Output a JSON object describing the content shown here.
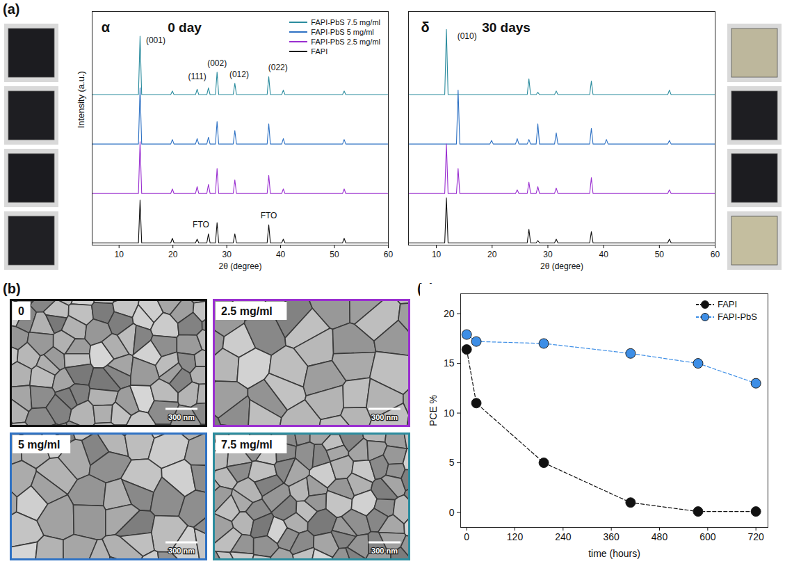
{
  "panel_labels": [
    "(a)",
    "(b)",
    "(c)"
  ],
  "chart_data": [
    {
      "type": "line",
      "title": "0 day",
      "xlabel": "2θ (degree)",
      "ylabel": "Intensity (a.u.)",
      "x": [
        5,
        11.5,
        11.8,
        12.1,
        13.6,
        13.9,
        14.2,
        19.6,
        19.9,
        20.2,
        24.2,
        24.5,
        24.8,
        26.3,
        26.6,
        26.9,
        27.9,
        28.2,
        28.5,
        31.2,
        31.5,
        31.8,
        37.5,
        37.8,
        38.1,
        40.2,
        40.5,
        40.8,
        51.5,
        51.8,
        52.1,
        60
      ],
      "series": [
        {
          "name": "FAPI-PbS 7.5 mg/ml",
          "color": "#2b8c9e",
          "values": [
            3.35,
            3.35,
            3.35,
            3.35,
            3.35,
            4.65,
            3.35,
            3.35,
            3.43,
            3.35,
            3.35,
            3.47,
            3.35,
            3.35,
            3.5,
            3.35,
            3.35,
            3.85,
            3.35,
            3.35,
            3.6,
            3.35,
            3.35,
            3.75,
            3.35,
            3.35,
            3.45,
            3.35,
            3.35,
            3.43,
            3.35,
            3.35
          ]
        },
        {
          "name": "FAPI-PbS 5 mg/ml",
          "color": "#2f72c4",
          "values": [
            2.25,
            2.25,
            2.25,
            2.25,
            2.25,
            3.5,
            2.25,
            2.25,
            2.35,
            2.25,
            2.25,
            2.37,
            2.25,
            2.25,
            2.4,
            2.25,
            2.25,
            2.75,
            2.25,
            2.25,
            2.55,
            2.25,
            2.25,
            2.7,
            2.25,
            2.25,
            2.37,
            2.25,
            2.25,
            2.35,
            2.25,
            2.25
          ]
        },
        {
          "name": "FAPI-PbS 2.5 mg/ml",
          "color": "#9a2fd0",
          "values": [
            1.15,
            1.15,
            1.15,
            1.15,
            1.15,
            2.3,
            1.15,
            1.15,
            1.25,
            1.15,
            1.15,
            1.3,
            1.15,
            1.15,
            1.35,
            1.15,
            1.15,
            1.7,
            1.15,
            1.15,
            1.45,
            1.15,
            1.15,
            1.55,
            1.15,
            1.15,
            1.25,
            1.15,
            1.15,
            1.25,
            1.15,
            1.15
          ]
        },
        {
          "name": "FAPI",
          "color": "#111111",
          "values": [
            0.05,
            0.05,
            0.05,
            0.05,
            0.05,
            1.0,
            0.05,
            0.05,
            0.15,
            0.05,
            0.05,
            0.13,
            0.05,
            0.05,
            0.25,
            0.05,
            0.05,
            0.5,
            0.05,
            0.05,
            0.25,
            0.05,
            0.05,
            0.45,
            0.05,
            0.05,
            0.13,
            0.05,
            0.05,
            0.15,
            0.05,
            0.05
          ]
        }
      ],
      "xlim": [
        5,
        60
      ],
      "ylim": [
        0,
        5.2
      ],
      "xticks": [
        10,
        20,
        30,
        40,
        50,
        60
      ],
      "tick_labels": "x",
      "legend": "top-right",
      "annotations": [
        {
          "text": "α",
          "x": 7.5,
          "y": 4.85
        },
        {
          "text": "(001)",
          "x": 16.8,
          "y": 4.55
        },
        {
          "text": "(111)",
          "x": 24.5,
          "y": 3.75
        },
        {
          "text": "(002)",
          "x": 28.2,
          "y": 4.05
        },
        {
          "text": "(012)",
          "x": 32.3,
          "y": 3.8
        },
        {
          "text": "(022)",
          "x": 39.5,
          "y": 3.95
        },
        {
          "text": "FTO",
          "x": 25.2,
          "y": 0.45
        },
        {
          "text": "FTO",
          "x": 37.8,
          "y": 0.65
        }
      ]
    },
    {
      "type": "line",
      "title": "30 days",
      "xlabel": "2θ (degree)",
      "x": [
        5,
        11.5,
        11.8,
        12.1,
        13.6,
        13.9,
        14.2,
        19.6,
        19.9,
        20.2,
        24.2,
        24.5,
        24.8,
        26.3,
        26.6,
        26.9,
        27.9,
        28.2,
        28.5,
        31.2,
        31.5,
        31.8,
        37.5,
        37.8,
        38.1,
        40.2,
        40.5,
        40.8,
        51.5,
        51.8,
        52.1,
        60
      ],
      "series": [
        {
          "name": "FAPI-PbS 7.5 mg/ml",
          "color": "#2b8c9e",
          "values": [
            3.35,
            3.35,
            4.8,
            3.35,
            3.35,
            3.35,
            3.35,
            3.35,
            3.35,
            3.35,
            3.35,
            3.35,
            3.35,
            3.35,
            3.7,
            3.35,
            3.35,
            3.4,
            3.35,
            3.35,
            3.43,
            3.35,
            3.35,
            3.65,
            3.35,
            3.35,
            3.35,
            3.35,
            3.35,
            3.45,
            3.35,
            3.35
          ]
        },
        {
          "name": "FAPI-PbS 5 mg/ml",
          "color": "#2f72c4",
          "values": [
            2.25,
            2.25,
            2.25,
            2.25,
            2.25,
            3.45,
            2.25,
            2.25,
            2.33,
            2.25,
            2.25,
            2.37,
            2.25,
            2.25,
            2.35,
            2.25,
            2.25,
            2.7,
            2.25,
            2.25,
            2.5,
            2.25,
            2.25,
            2.6,
            2.25,
            2.25,
            2.35,
            2.25,
            2.25,
            2.33,
            2.25,
            2.25
          ]
        },
        {
          "name": "FAPI-PbS 2.5 mg/ml",
          "color": "#9a2fd0",
          "values": [
            1.15,
            1.15,
            2.25,
            1.15,
            1.15,
            1.7,
            1.15,
            1.15,
            1.15,
            1.15,
            1.15,
            1.23,
            1.15,
            1.15,
            1.4,
            1.15,
            1.15,
            1.3,
            1.15,
            1.15,
            1.27,
            1.15,
            1.15,
            1.5,
            1.15,
            1.15,
            1.15,
            1.15,
            1.15,
            1.23,
            1.15,
            1.15
          ]
        },
        {
          "name": "FAPI",
          "color": "#111111",
          "values": [
            0.05,
            0.05,
            1.05,
            0.05,
            0.05,
            0.05,
            0.05,
            0.05,
            0.05,
            0.05,
            0.05,
            0.05,
            0.05,
            0.05,
            0.35,
            0.05,
            0.05,
            0.1,
            0.05,
            0.05,
            0.13,
            0.05,
            0.05,
            0.3,
            0.05,
            0.05,
            0.05,
            0.05,
            0.05,
            0.13,
            0.05,
            0.05
          ]
        }
      ],
      "xlim": [
        5,
        60
      ],
      "ylim": [
        0,
        5.2
      ],
      "xticks": [
        10,
        20,
        30,
        40,
        50,
        60
      ],
      "tick_labels": "x",
      "annotations": [
        {
          "text": "δ",
          "x": 8,
          "y": 4.85
        },
        {
          "text": "(010)",
          "x": 15.5,
          "y": 4.65
        }
      ]
    },
    {
      "type": "line",
      "xlabel": "time (hours)",
      "ylabel": "PCE %",
      "x": [
        0,
        24,
        192,
        408,
        576,
        720
      ],
      "series": [
        {
          "name": "FAPI",
          "color": "#111111",
          "values": [
            16.4,
            11,
            5,
            1,
            0.1,
            0.1
          ]
        },
        {
          "name": "FAPI-PbS",
          "color": "#3d8ee6",
          "values": [
            17.9,
            17.2,
            17,
            16,
            15,
            13
          ]
        }
      ],
      "xlim": [
        -15,
        750
      ],
      "ylim": [
        -1.5,
        22
      ],
      "xticks": [
        0,
        120,
        240,
        360,
        480,
        600,
        720
      ],
      "yticks": [
        0,
        5,
        10,
        15,
        20
      ],
      "marker": "circle",
      "line_style": "dashed",
      "legend": "top-right"
    }
  ],
  "sem": {
    "scale_bar": "300 nm",
    "panels": [
      {
        "label": "0",
        "color": "#111111"
      },
      {
        "label": "2.5 mg/ml",
        "color": "#9a2fd0"
      },
      {
        "label": "5 mg/ml",
        "color": "#2f72c4"
      },
      {
        "label": "7.5 mg/ml",
        "color": "#2b8c9e"
      }
    ]
  }
}
